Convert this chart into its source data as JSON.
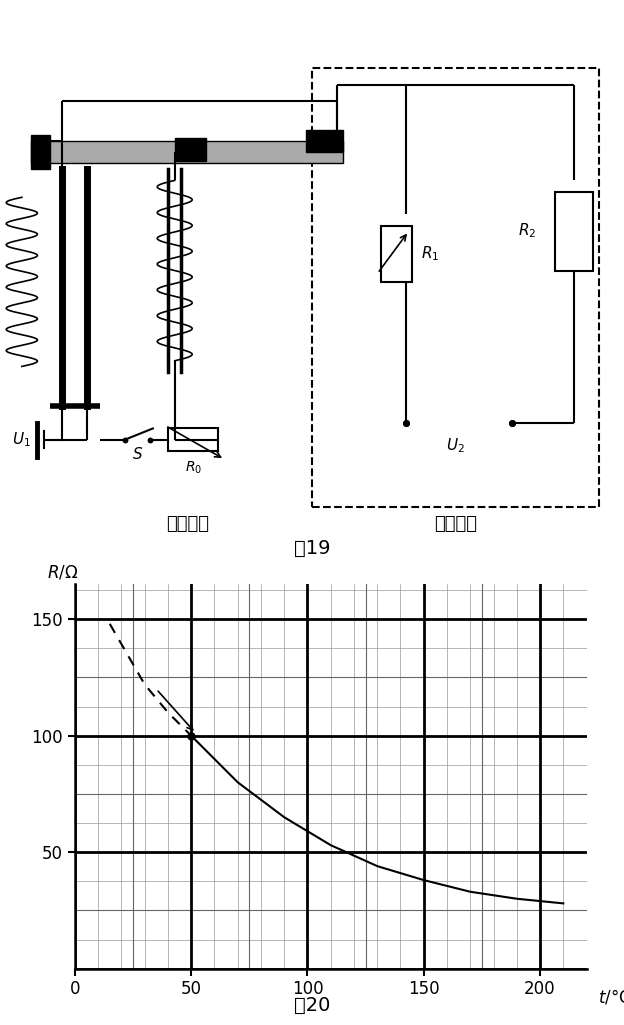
{
  "fig19_title": "图19",
  "fig20_title": "图20",
  "label_control": "控制电路",
  "label_work": "工作电路",
  "ylabel": "R/Ω",
  "xlabel": "t/°C",
  "yticks": [
    50,
    100,
    150
  ],
  "xticks": [
    0,
    50,
    100,
    150,
    200
  ],
  "ylim": [
    0,
    165
  ],
  "xlim": [
    0,
    220
  ],
  "curve_x": [
    20,
    50,
    70,
    90,
    110,
    130,
    150,
    170,
    190,
    210
  ],
  "curve_y": [
    148,
    100,
    80,
    65,
    53,
    44,
    38,
    33,
    30,
    28
  ],
  "dot_x": 50,
  "dot_y": 100,
  "bg_color": "#ffffff"
}
